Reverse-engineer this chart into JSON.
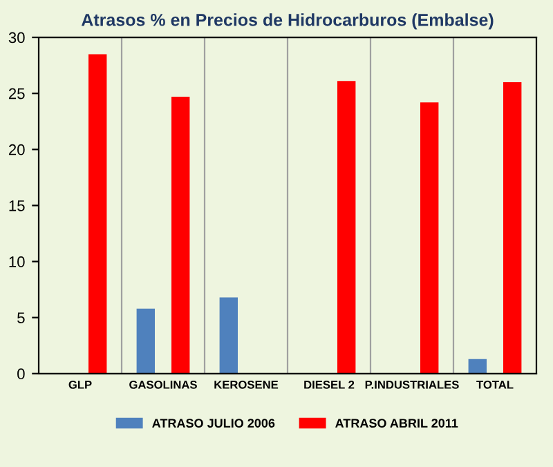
{
  "chart_data": {
    "type": "bar",
    "title": "Atrasos % en Precios de Hidrocarburos (Embalse)",
    "categories": [
      "GLP",
      "GASOLINAS",
      "KEROSENE",
      "DIESEL 2",
      "P.INDUSTRIALES",
      "TOTAL"
    ],
    "series": [
      {
        "name": "ATRASO JULIO 2006",
        "color": "#4f81bd",
        "values": [
          0,
          5.8,
          6.8,
          0,
          0,
          1.3
        ]
      },
      {
        "name": "ATRASO ABRIL 2011",
        "color": "#ff0000",
        "values": [
          28.5,
          24.7,
          null,
          26.1,
          24.2,
          26.0
        ]
      }
    ],
    "ylim": [
      0,
      30
    ],
    "yticks": [
      0,
      5,
      10,
      15,
      20,
      25,
      30
    ],
    "grid": "x",
    "legend": "bottom"
  }
}
